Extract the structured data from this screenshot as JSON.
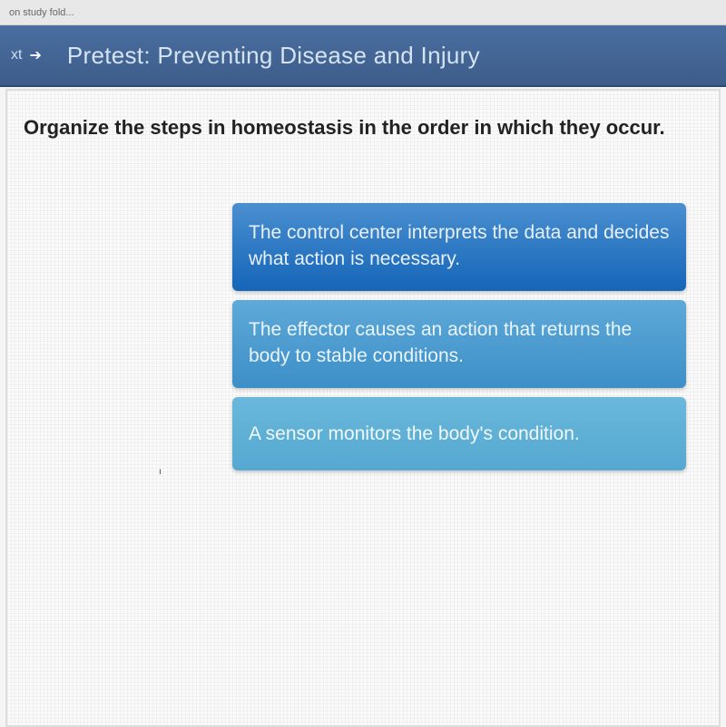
{
  "browser": {
    "tab_fragment": "on study fold..."
  },
  "header": {
    "nav_text": "xt",
    "title": "Pretest: Preventing Disease and Injury"
  },
  "question": {
    "prompt": "Organize the steps in homeostasis in the order in which they occur."
  },
  "cards": [
    {
      "text": "The control center interprets the data and decides what action is necessary.",
      "bg_gradient_top": "#4a8fd0",
      "bg_gradient_bottom": "#1565b8"
    },
    {
      "text": "The effector causes an action that returns the\nbody to stable conditions.",
      "bg_gradient_top": "#5ea9d8",
      "bg_gradient_bottom": "#3d8fc8"
    },
    {
      "text": "A sensor monitors the body's condition.",
      "bg_gradient_top": "#6ab8dc",
      "bg_gradient_bottom": "#55a8d0"
    }
  ],
  "colors": {
    "header_bg_top": "#4a6ea0",
    "header_bg_bottom": "#3d5d8a",
    "header_text": "#d5e3f2",
    "content_bg": "#fafafa",
    "question_text": "#222222"
  }
}
